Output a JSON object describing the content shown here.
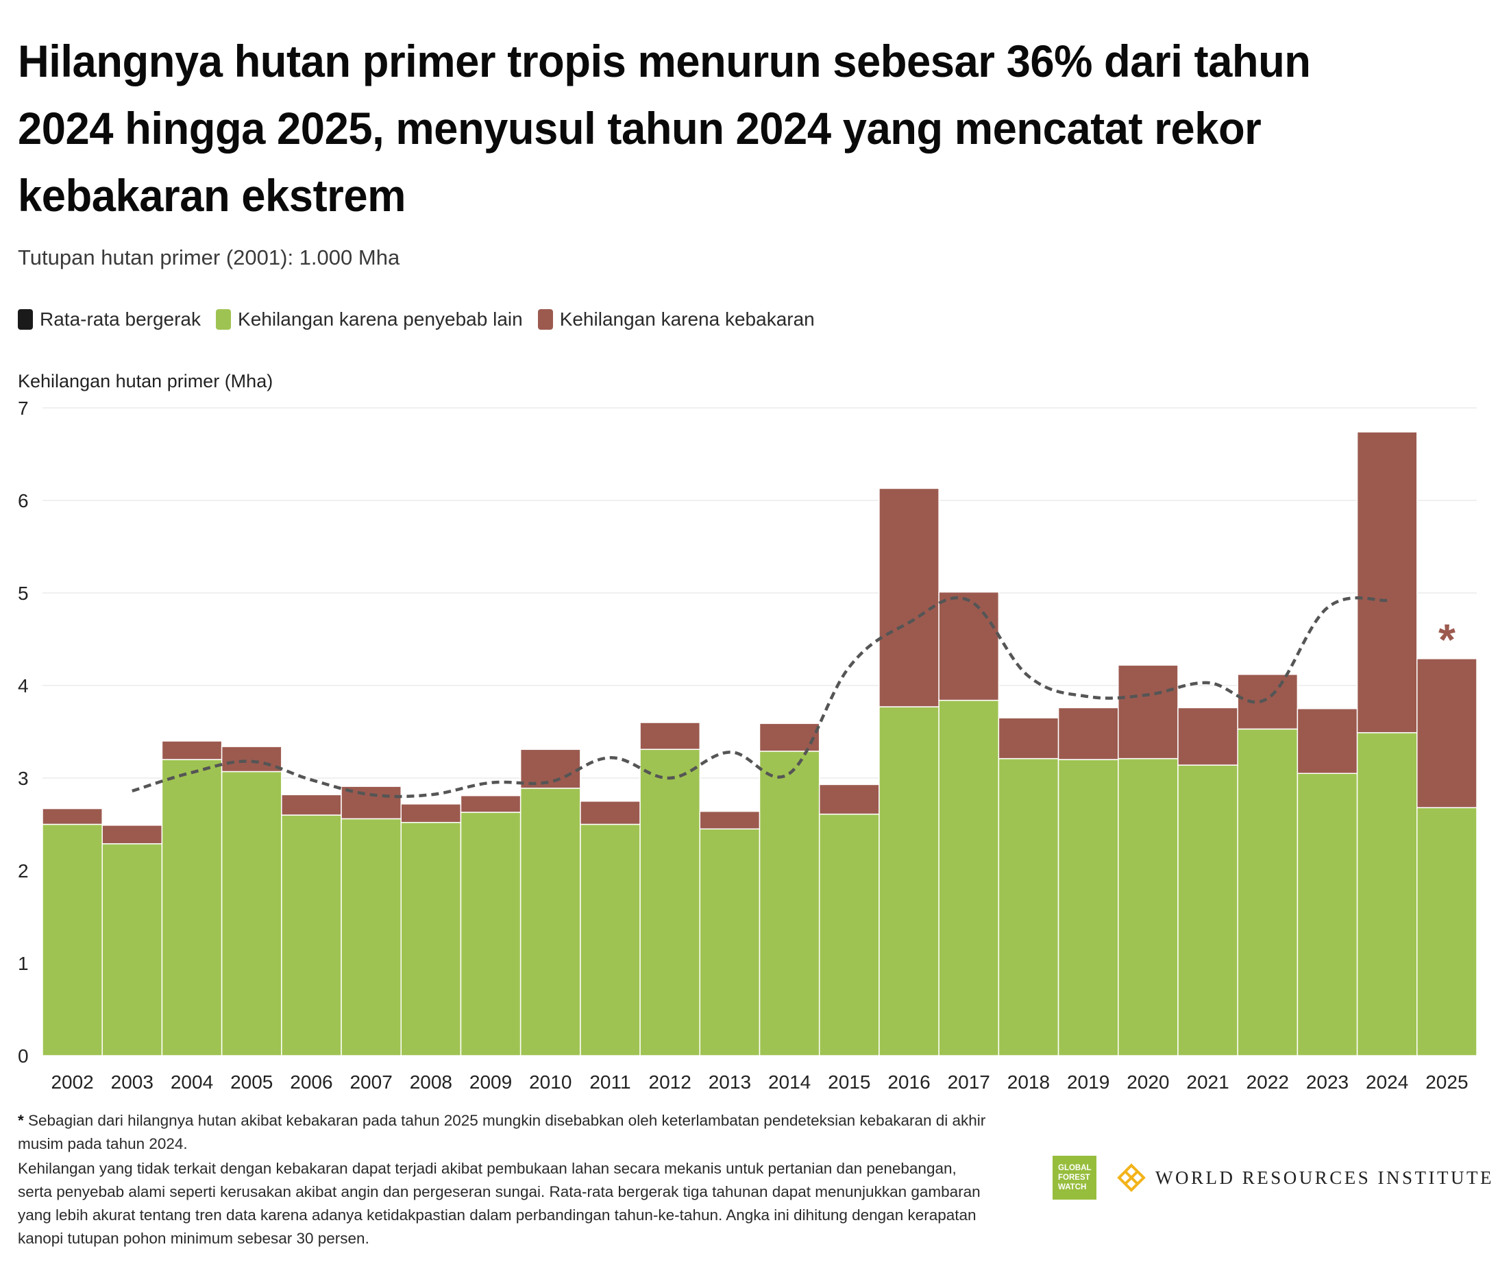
{
  "title": "Hilangnya hutan primer tropis menurun sebesar 36% dari tahun 2024 hingga 2025, menyusul tahun 2024 yang mencatat rekor kebakaran ekstrem",
  "subtitle": "Tutupan hutan primer (2001): 1.000 Mha",
  "legend": [
    {
      "label": "Rata-rata bergerak",
      "color": "#1a1a1a"
    },
    {
      "label": "Kehilangan karena penyebab lain",
      "color": "#9fc352"
    },
    {
      "label": "Kehilangan karena kebakaran",
      "color": "#9c5a4f"
    }
  ],
  "chart_data": {
    "type": "bar",
    "stacked": true,
    "ylabel": "Kehilangan hutan primer (Mha)",
    "ylim": [
      0,
      7
    ],
    "yticks": [
      0,
      1,
      2,
      3,
      4,
      5,
      6,
      7
    ],
    "grid": true,
    "categories": [
      "2002",
      "2003",
      "2004",
      "2005",
      "2006",
      "2007",
      "2008",
      "2009",
      "2010",
      "2011",
      "2012",
      "2013",
      "2014",
      "2015",
      "2016",
      "2017",
      "2018",
      "2019",
      "2020",
      "2021",
      "2022",
      "2023",
      "2024",
      "2025"
    ],
    "series": [
      {
        "name": "Kehilangan karena penyebab lain",
        "color": "#9fc352",
        "values": [
          2.5,
          2.29,
          3.2,
          3.07,
          2.6,
          2.56,
          2.52,
          2.63,
          2.89,
          2.5,
          3.31,
          2.45,
          3.29,
          2.61,
          3.77,
          3.84,
          3.21,
          3.2,
          3.21,
          3.14,
          3.53,
          3.05,
          3.49,
          2.68
        ]
      },
      {
        "name": "Kehilangan karena kebakaran",
        "color": "#9c5a4f",
        "values": [
          0.17,
          0.2,
          0.2,
          0.27,
          0.22,
          0.35,
          0.2,
          0.18,
          0.42,
          0.25,
          0.29,
          0.19,
          0.3,
          0.32,
          2.36,
          1.17,
          0.44,
          0.56,
          1.01,
          0.62,
          0.59,
          0.7,
          3.25,
          1.61
        ]
      }
    ],
    "moving_average": {
      "name": "Rata-rata bergerak",
      "color": "#555555",
      "x": [
        "2003",
        "2004",
        "2005",
        "2006",
        "2007",
        "2008",
        "2009",
        "2010",
        "2011",
        "2012",
        "2013",
        "2014",
        "2015",
        "2016",
        "2017",
        "2018",
        "2019",
        "2020",
        "2021",
        "2022",
        "2023",
        "2024"
      ],
      "values": [
        2.86,
        3.06,
        3.18,
        2.98,
        2.82,
        2.82,
        2.95,
        2.96,
        3.22,
        3.0,
        3.28,
        3.05,
        4.2,
        4.68,
        4.92,
        4.1,
        3.88,
        3.9,
        4.03,
        3.86,
        4.84,
        4.92
      ]
    },
    "annotation": {
      "category": "2025",
      "text": "*",
      "color": "#9c5a4f"
    }
  },
  "footnote": {
    "star": "*",
    "star_text": " Sebagian dari hilangnya hutan akibat kebakaran pada tahun 2025 mungkin disebabkan oleh keterlambatan pendeteksian kebakaran di akhir musim pada tahun 2024.",
    "body": "Kehilangan yang tidak terkait dengan kebakaran dapat terjadi akibat pembukaan lahan secara mekanis untuk pertanian dan penebangan, serta penyebab alami seperti kerusakan akibat angin dan pergeseran sungai. Rata-rata bergerak tiga tahunan dapat menunjukkan gambaran yang lebih akurat tentang tren data karena adanya ketidakpastian dalam perbandingan tahun-ke-tahun. Angka ini dihitung dengan kerapatan kanopi tutupan pohon minimum sebesar 30 persen."
  },
  "logos": {
    "gfw_lines": [
      "GLOBAL",
      "FOREST",
      "WATCH"
    ],
    "gfw_color": "#97bd3d",
    "wri_name": "WORLD RESOURCES INSTITUTE",
    "wri_color": "#f2b31b"
  }
}
